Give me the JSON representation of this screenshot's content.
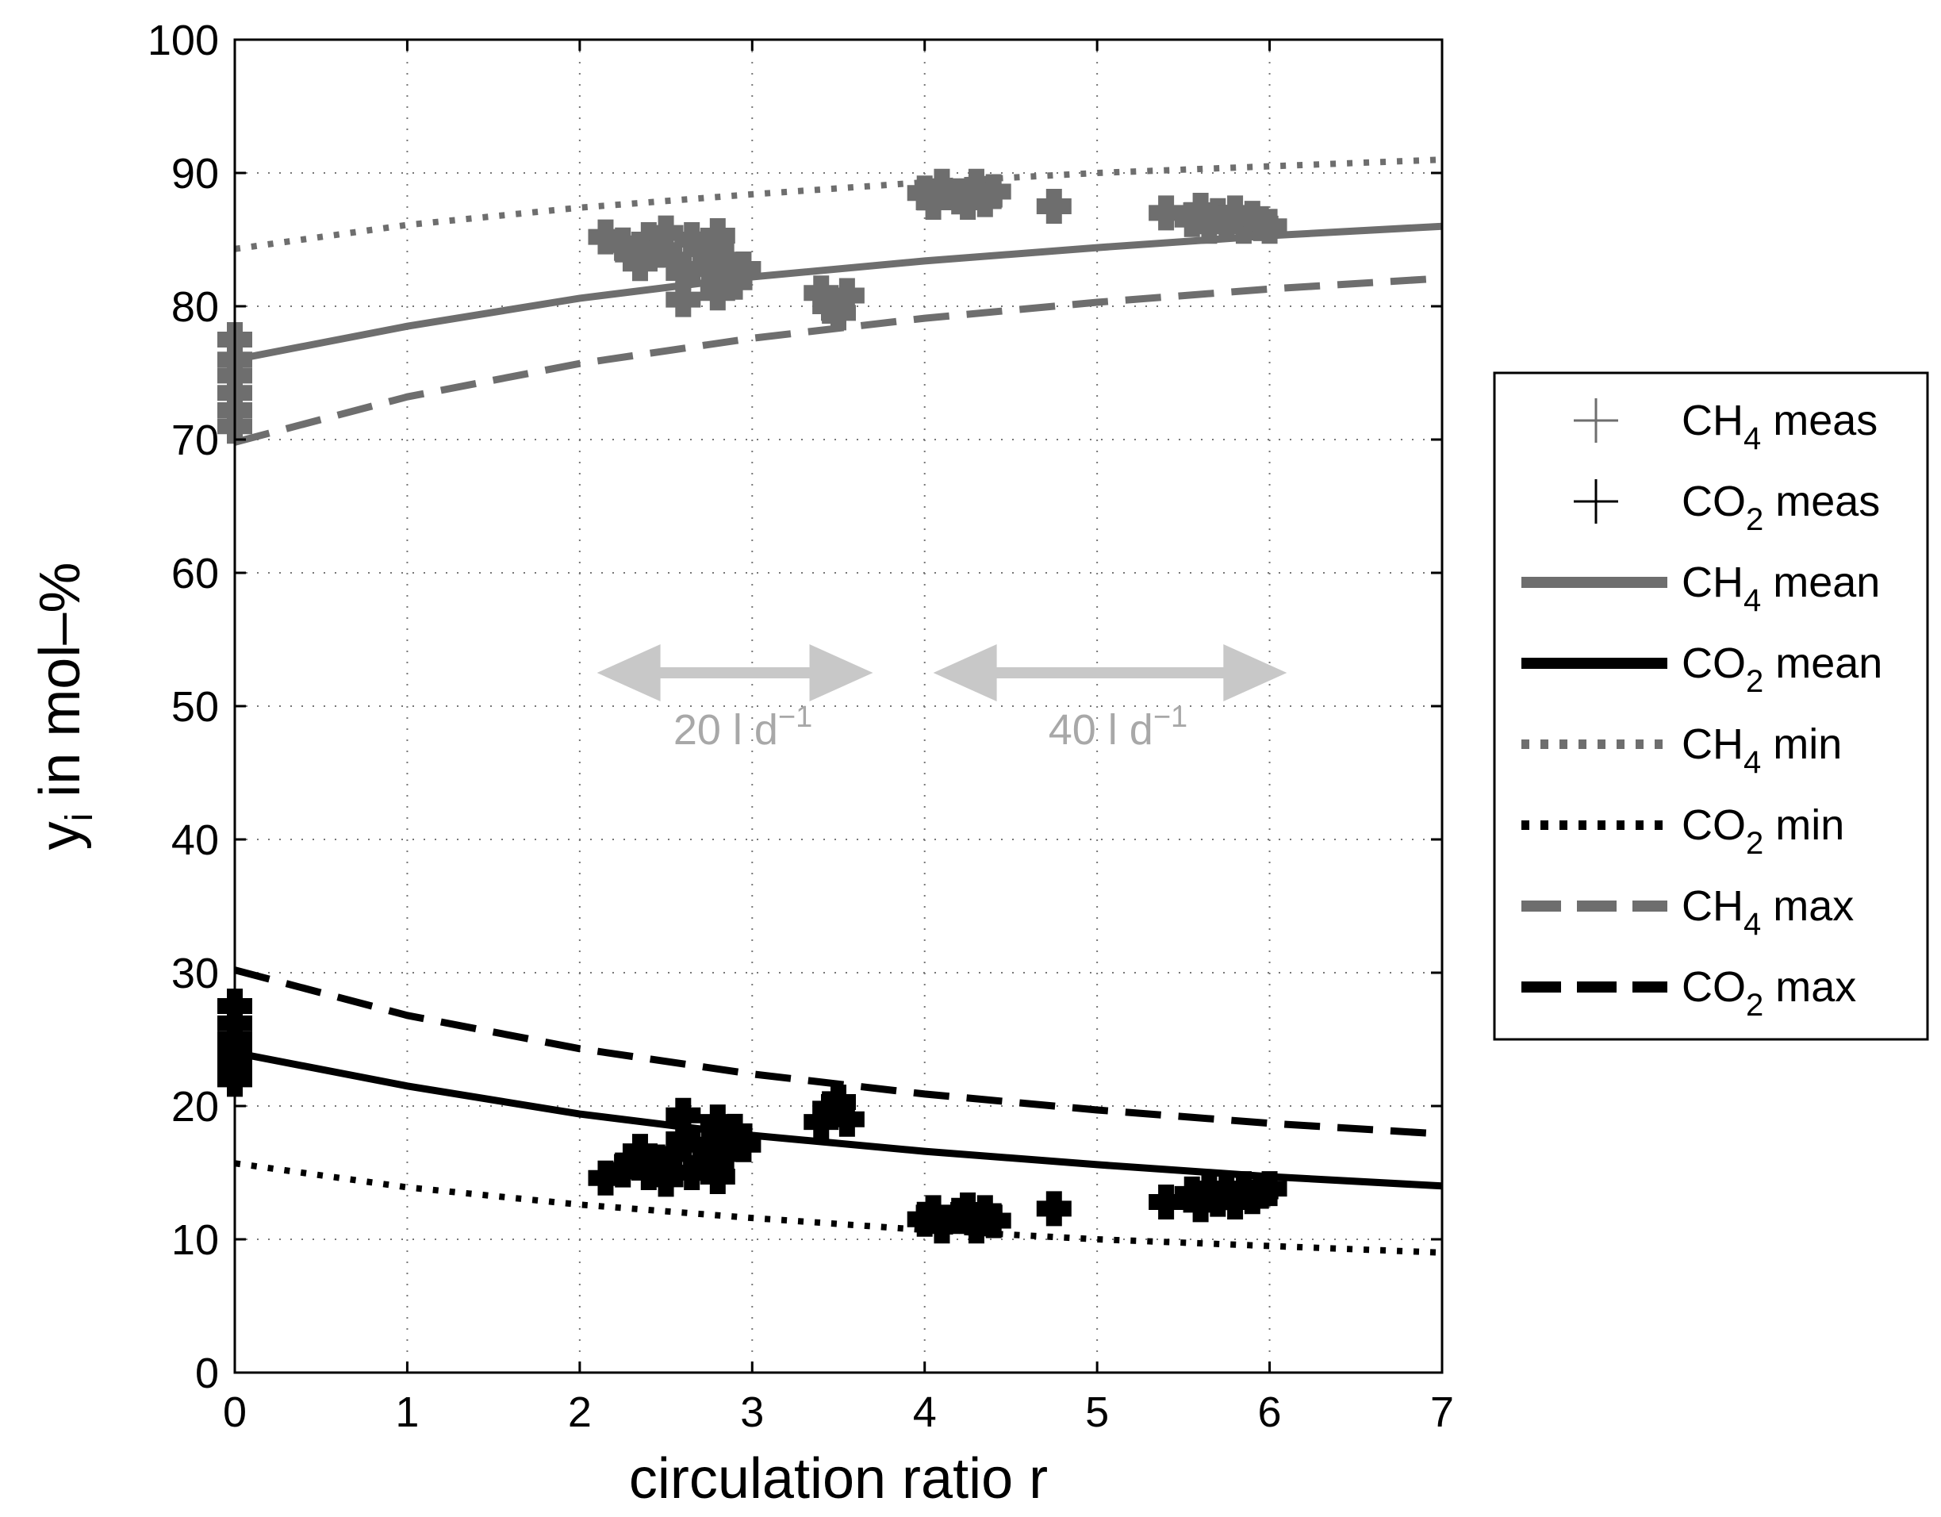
{
  "chart_data": {
    "type": "line",
    "xlabel": "circulation ratio r",
    "ylabel": "y",
    "ylabel_sub": "i",
    "ylabel_rest": " in mol–%",
    "xlim": [
      0,
      7
    ],
    "ylim": [
      0,
      100
    ],
    "xticks": [
      0,
      1,
      2,
      3,
      4,
      5,
      6,
      7
    ],
    "yticks": [
      0,
      10,
      20,
      30,
      40,
      50,
      60,
      70,
      80,
      90,
      100
    ],
    "grid": true,
    "legend_position": "outside-right",
    "colors": {
      "ch4": "#6e6e6e",
      "co2": "#000000",
      "annotation": "#c8c8c8"
    },
    "series": [
      {
        "id": "ch4_mean",
        "name": "CH",
        "sub": "4",
        "suffix": " mean",
        "style": "solid",
        "color": "#6e6e6e",
        "x": [
          0,
          1,
          2,
          3,
          4,
          5,
          6,
          7
        ],
        "y": [
          76.0,
          78.5,
          80.6,
          82.2,
          83.4,
          84.4,
          85.3,
          86.0
        ]
      },
      {
        "id": "co2_mean",
        "name": "CO",
        "sub": "2",
        "suffix": " mean",
        "style": "solid",
        "color": "#000000",
        "x": [
          0,
          1,
          2,
          3,
          4,
          5,
          6,
          7
        ],
        "y": [
          24.0,
          21.5,
          19.4,
          17.8,
          16.6,
          15.6,
          14.7,
          14.0
        ]
      },
      {
        "id": "ch4_min",
        "name": "CH",
        "sub": "4",
        "suffix": " min",
        "style": "dotted",
        "color": "#6e6e6e",
        "x": [
          0,
          1,
          2,
          3,
          4,
          5,
          6,
          7
        ],
        "y": [
          84.3,
          86.1,
          87.4,
          88.4,
          89.3,
          90.0,
          90.5,
          91.0
        ]
      },
      {
        "id": "co2_min",
        "name": "CO",
        "sub": "2",
        "suffix": " min",
        "style": "dotted",
        "color": "#000000",
        "x": [
          0,
          1,
          2,
          3,
          4,
          5,
          6,
          7
        ],
        "y": [
          15.7,
          13.9,
          12.6,
          11.6,
          10.7,
          10.0,
          9.5,
          9.0
        ]
      },
      {
        "id": "ch4_max",
        "name": "CH",
        "sub": "4",
        "suffix": " max",
        "style": "dashed",
        "color": "#6e6e6e",
        "x": [
          0,
          1,
          2,
          3,
          4,
          5,
          6,
          7
        ],
        "y": [
          69.8,
          73.2,
          75.7,
          77.6,
          79.1,
          80.3,
          81.3,
          82.1
        ]
      },
      {
        "id": "co2_max",
        "name": "CO",
        "sub": "2",
        "suffix": " max",
        "style": "dashed",
        "color": "#000000",
        "x": [
          0,
          1,
          2,
          3,
          4,
          5,
          6,
          7
        ],
        "y": [
          30.2,
          26.8,
          24.3,
          22.4,
          20.9,
          19.7,
          18.7,
          17.9
        ]
      }
    ],
    "measurements": [
      {
        "id": "ch4_meas",
        "name": "CH",
        "sub": "4",
        "suffix": " meas",
        "color": "#6e6e6e",
        "points": [
          [
            0,
            77.5
          ],
          [
            0,
            76.0
          ],
          [
            0,
            74.8
          ],
          [
            0,
            73.5
          ],
          [
            0,
            72.2
          ],
          [
            0,
            71.0
          ],
          [
            2.15,
            85.2
          ],
          [
            2.25,
            84.6
          ],
          [
            2.3,
            84.0
          ],
          [
            2.35,
            83.2
          ],
          [
            2.4,
            85.0
          ],
          [
            2.45,
            84.2
          ],
          [
            2.5,
            85.5
          ],
          [
            2.55,
            83.5
          ],
          [
            2.6,
            82.5
          ],
          [
            2.6,
            80.5
          ],
          [
            2.65,
            85.0
          ],
          [
            2.7,
            84.3
          ],
          [
            2.75,
            82.8
          ],
          [
            2.8,
            85.3
          ],
          [
            2.85,
            83.5
          ],
          [
            2.9,
            81.8
          ],
          [
            2.95,
            82.8
          ],
          [
            2.8,
            81.0
          ],
          [
            3.4,
            81.0
          ],
          [
            3.45,
            80.0
          ],
          [
            3.5,
            79.5
          ],
          [
            3.55,
            80.8
          ],
          [
            4.0,
            88.5
          ],
          [
            4.05,
            87.8
          ],
          [
            4.1,
            89.0
          ],
          [
            4.2,
            88.2
          ],
          [
            4.25,
            87.8
          ],
          [
            4.3,
            89.0
          ],
          [
            4.35,
            88.0
          ],
          [
            4.4,
            88.6
          ],
          [
            4.75,
            87.5
          ],
          [
            5.4,
            87.0
          ],
          [
            5.55,
            86.5
          ],
          [
            5.6,
            87.2
          ],
          [
            5.65,
            86.0
          ],
          [
            5.7,
            86.8
          ],
          [
            5.75,
            86.3
          ],
          [
            5.8,
            87.0
          ],
          [
            5.85,
            86.0
          ],
          [
            5.9,
            86.6
          ],
          [
            5.95,
            86.2
          ],
          [
            6.0,
            86.0
          ]
        ]
      },
      {
        "id": "co2_meas",
        "name": "CO",
        "sub": "2",
        "suffix": " meas",
        "color": "#000000",
        "points": [
          [
            0,
            27.5
          ],
          [
            0,
            26.2
          ],
          [
            0,
            25.0
          ],
          [
            0,
            24.0
          ],
          [
            0,
            23.0
          ],
          [
            0,
            22.0
          ],
          [
            2.15,
            14.6
          ],
          [
            2.25,
            15.2
          ],
          [
            2.3,
            15.8
          ],
          [
            2.35,
            16.6
          ],
          [
            2.4,
            15.0
          ],
          [
            2.45,
            15.8
          ],
          [
            2.5,
            14.5
          ],
          [
            2.55,
            16.4
          ],
          [
            2.6,
            17.5
          ],
          [
            2.6,
            19.3
          ],
          [
            2.65,
            15.0
          ],
          [
            2.7,
            15.7
          ],
          [
            2.75,
            17.1
          ],
          [
            2.8,
            14.7
          ],
          [
            2.85,
            16.4
          ],
          [
            2.9,
            18.1
          ],
          [
            2.95,
            17.1
          ],
          [
            2.8,
            18.8
          ],
          [
            3.4,
            18.8
          ],
          [
            3.45,
            19.8
          ],
          [
            3.5,
            20.3
          ],
          [
            3.55,
            19.0
          ],
          [
            4.0,
            11.5
          ],
          [
            4.05,
            12.0
          ],
          [
            4.1,
            11.0
          ],
          [
            4.2,
            11.8
          ],
          [
            4.25,
            12.2
          ],
          [
            4.3,
            11.0
          ],
          [
            4.35,
            12.0
          ],
          [
            4.4,
            11.4
          ],
          [
            4.75,
            12.3
          ],
          [
            5.4,
            12.8
          ],
          [
            5.55,
            13.4
          ],
          [
            5.6,
            12.6
          ],
          [
            5.65,
            13.8
          ],
          [
            5.7,
            13.0
          ],
          [
            5.75,
            13.5
          ],
          [
            5.8,
            12.8
          ],
          [
            5.85,
            13.8
          ],
          [
            5.9,
            13.2
          ],
          [
            5.95,
            13.6
          ],
          [
            6.0,
            13.8
          ]
        ]
      }
    ],
    "annotations": [
      {
        "id": "range20",
        "x_from": 2.1,
        "x_to": 3.7,
        "y": 52.5,
        "label": "20 l d",
        "sup": "−1"
      },
      {
        "id": "range40",
        "x_from": 4.05,
        "x_to": 6.1,
        "y": 52.5,
        "label": "40 l d",
        "sup": "−1"
      }
    ]
  }
}
